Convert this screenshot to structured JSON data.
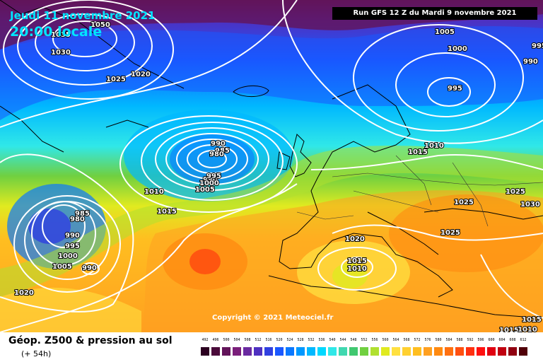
{
  "header": {
    "date": "Jeudi 11 novembre 2021",
    "time": "20:00 locale",
    "run": "Run GFS 12 Z du Mardi 9 novembre 2021"
  },
  "map": {
    "copyright": "Copyright © 2021 Meteociel.fr",
    "isobar_labels": [
      {
        "text": "1050"
      },
      {
        "text": "1035"
      },
      {
        "text": "1030"
      },
      {
        "text": "1025"
      },
      {
        "text": "1020"
      },
      {
        "text": "1005"
      },
      {
        "text": "1000"
      },
      {
        "text": "995"
      },
      {
        "text": "990"
      },
      {
        "text": "995"
      },
      {
        "text": "990"
      },
      {
        "text": "985"
      },
      {
        "text": "980"
      },
      {
        "text": "990"
      },
      {
        "text": "995"
      },
      {
        "text": "1000"
      },
      {
        "text": "1005"
      },
      {
        "text": "1010"
      },
      {
        "text": "1015"
      },
      {
        "text": "985"
      },
      {
        "text": "980"
      },
      {
        "text": "990"
      },
      {
        "text": "995"
      },
      {
        "text": "1000"
      },
      {
        "text": "1005"
      },
      {
        "text": "990"
      },
      {
        "text": "1020"
      },
      {
        "text": "1015"
      },
      {
        "text": "1010"
      },
      {
        "text": "1025"
      },
      {
        "text": "1025"
      },
      {
        "text": "1030"
      },
      {
        "text": "1025"
      },
      {
        "text": "1020"
      },
      {
        "text": "1015"
      },
      {
        "text": "1010"
      },
      {
        "text": "1015"
      },
      {
        "text": "1015"
      },
      {
        "text": "1010"
      }
    ]
  },
  "footer": {
    "product": "Géop. Z500 & pression au sol",
    "lead_time": "(+ 54h)"
  },
  "legend": {
    "labels": [
      "492",
      "496",
      "500",
      "504",
      "508",
      "512",
      "516",
      "520",
      "524",
      "528",
      "532",
      "536",
      "540",
      "544",
      "548",
      "552",
      "556",
      "560",
      "564",
      "568",
      "572",
      "576",
      "580",
      "584",
      "588",
      "592",
      "596",
      "600",
      "604",
      "608",
      "612"
    ],
    "colors": [
      "#2b0020",
      "#4a0a3a",
      "#62145a",
      "#7a1e7a",
      "#6a2aa0",
      "#4e30c0",
      "#3040e0",
      "#1a58ff",
      "#0a78ff",
      "#0098ff",
      "#00b8ff",
      "#00d8ff",
      "#30e8e8",
      "#40d8b0",
      "#40c870",
      "#70d040",
      "#b0e030",
      "#e0ea20",
      "#ffe040",
      "#ffd030",
      "#ffbe20",
      "#ffa020",
      "#ff8a10",
      "#ff7010",
      "#ff5010",
      "#ff3010",
      "#ff1010",
      "#e00010",
      "#c00010",
      "#900010",
      "#500008"
    ]
  }
}
